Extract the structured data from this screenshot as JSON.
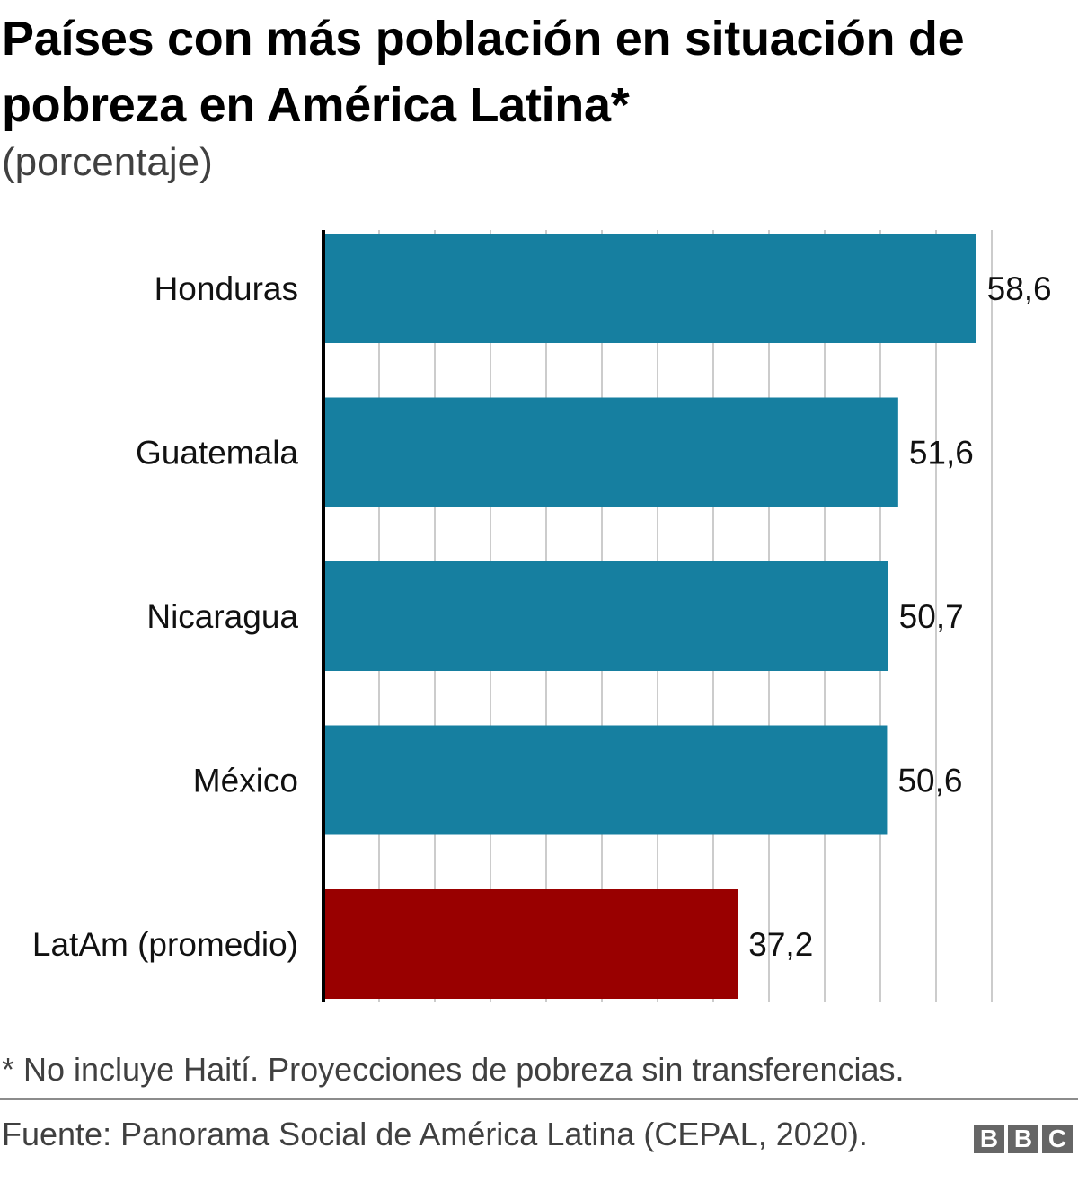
{
  "chart_data": {
    "type": "bar",
    "orientation": "horizontal",
    "title": "Países con más población en situación de pobreza en América Latina*",
    "subtitle": "(porcentaje)",
    "categories": [
      "Honduras",
      "Guatemala",
      "Nicaragua",
      "México",
      "LatAm (promedio)"
    ],
    "values": [
      58.6,
      51.6,
      50.7,
      50.6,
      37.2
    ],
    "value_labels": [
      "58,6",
      "51,6",
      "50,7",
      "50,6",
      "37,2"
    ],
    "colors": [
      "#167fa0",
      "#167fa0",
      "#167fa0",
      "#167fa0",
      "#990000"
    ],
    "xlim": [
      0,
      60
    ],
    "grid_step": 5,
    "grid": true,
    "xlabel": "",
    "ylabel": ""
  },
  "footnote": "* No incluye Haití. Proyecciones de pobreza sin transferencias.",
  "source": "Fuente: Panorama Social de América Latina (CEPAL, 2020).",
  "logo": [
    "B",
    "B",
    "C"
  ]
}
